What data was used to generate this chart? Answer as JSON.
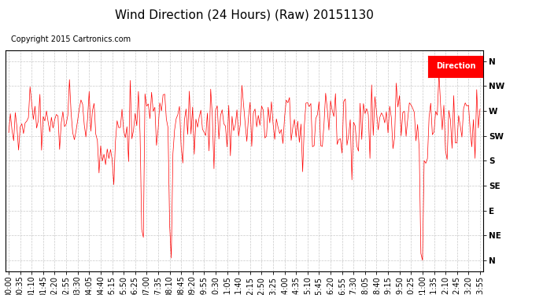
{
  "title": "Wind Direction (24 Hours) (Raw) 20151130",
  "copyright": "Copyright 2015 Cartronics.com",
  "legend_label": "Direction",
  "line_color": "#ff0000",
  "background_color": "#ffffff",
  "grid_color": "#bbbbbb",
  "ytick_labels": [
    "N",
    "NE",
    "E",
    "SE",
    "S",
    "SW",
    "W",
    "NW",
    "N"
  ],
  "ytick_values": [
    360,
    315,
    270,
    225,
    180,
    135,
    90,
    45,
    0
  ],
  "ylim": [
    380,
    -20
  ],
  "num_points": 288,
  "seed": 42,
  "title_fontsize": 11,
  "tick_fontsize": 7.5,
  "copyright_fontsize": 7
}
